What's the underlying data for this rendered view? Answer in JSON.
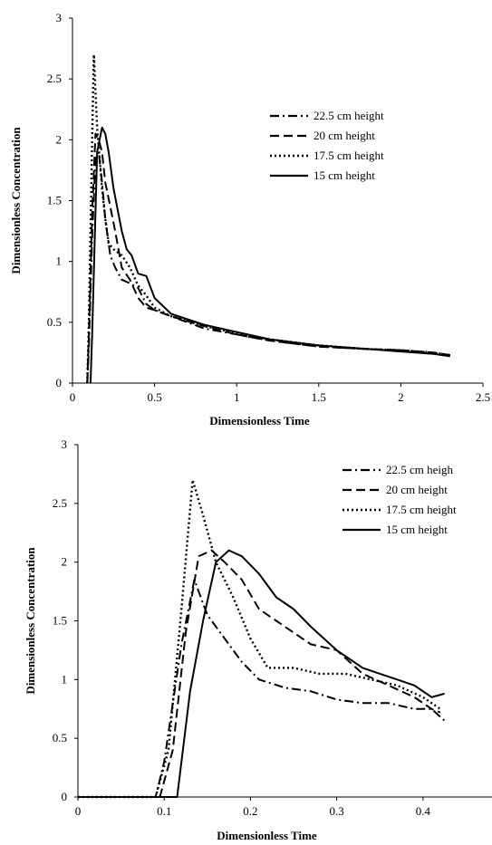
{
  "chart_data": [
    {
      "type": "line",
      "title": "",
      "xlabel": "Dimensionless Time",
      "ylabel": "Dimensionless Concentration",
      "xlim": [
        0,
        2.5
      ],
      "ylim": [
        0,
        3
      ],
      "xticks": [
        "0",
        "0.5",
        "1",
        "1.5",
        "2",
        "2.5"
      ],
      "yticks": [
        "0",
        "0.5",
        "1",
        "1.5",
        "2",
        "2.5",
        "3"
      ],
      "grid": false,
      "legend_position": "right",
      "series": [
        {
          "name": "22.5 cm height",
          "style": "dashdot",
          "x": [
            0.09,
            0.1,
            0.12,
            0.14,
            0.16,
            0.18,
            0.2,
            0.23,
            0.26,
            0.3,
            0.35,
            0.4,
            0.45,
            0.5,
            0.6,
            0.8,
            1.0,
            1.2,
            1.5,
            1.8,
            2.0,
            2.2,
            2.3
          ],
          "y": [
            0,
            0.3,
            1.2,
            1.85,
            1.9,
            1.65,
            1.35,
            1.05,
            0.95,
            0.85,
            0.82,
            0.78,
            0.65,
            0.6,
            0.55,
            0.45,
            0.4,
            0.35,
            0.3,
            0.28,
            0.27,
            0.25,
            0.23
          ]
        },
        {
          "name": "20 cm height",
          "style": "dash",
          "x": [
            0.09,
            0.1,
            0.12,
            0.14,
            0.16,
            0.18,
            0.2,
            0.23,
            0.26,
            0.3,
            0.35,
            0.4,
            0.45,
            0.5,
            0.6,
            0.8,
            1.0,
            1.2,
            1.5,
            1.8,
            2.0,
            2.2,
            2.3
          ],
          "y": [
            0,
            0.4,
            1.4,
            2.05,
            2.0,
            1.9,
            1.65,
            1.45,
            1.25,
            0.95,
            0.85,
            0.7,
            0.62,
            0.6,
            0.55,
            0.47,
            0.4,
            0.35,
            0.3,
            0.28,
            0.27,
            0.25,
            0.23
          ]
        },
        {
          "name": "17.5 cm height",
          "style": "dot",
          "x": [
            0.09,
            0.1,
            0.12,
            0.13,
            0.15,
            0.18,
            0.2,
            0.22,
            0.25,
            0.3,
            0.35,
            0.4,
            0.45,
            0.5,
            0.6,
            0.8,
            1.0,
            1.2,
            1.5,
            1.8,
            2.0,
            2.2,
            2.3
          ],
          "y": [
            0,
            0.5,
            2.0,
            2.7,
            2.1,
            1.6,
            1.35,
            1.15,
            1.1,
            1.05,
            0.95,
            0.8,
            0.72,
            0.62,
            0.55,
            0.47,
            0.41,
            0.36,
            0.31,
            0.28,
            0.27,
            0.25,
            0.23
          ]
        },
        {
          "name": "15 cm height",
          "style": "solid",
          "x": [
            0.11,
            0.12,
            0.15,
            0.18,
            0.2,
            0.22,
            0.25,
            0.3,
            0.33,
            0.36,
            0.4,
            0.45,
            0.5,
            0.6,
            0.8,
            1.0,
            1.2,
            1.5,
            1.8,
            2.0,
            2.2,
            2.3
          ],
          "y": [
            0,
            0.4,
            1.9,
            2.1,
            2.05,
            1.9,
            1.6,
            1.25,
            1.1,
            1.05,
            0.9,
            0.88,
            0.7,
            0.57,
            0.48,
            0.42,
            0.36,
            0.31,
            0.28,
            0.26,
            0.24,
            0.22
          ]
        }
      ]
    },
    {
      "type": "line",
      "title": "",
      "xlabel": "Dimensionless Time",
      "ylabel": "Dimensionless Concentration",
      "xlim": [
        0,
        0.48
      ],
      "ylim": [
        0,
        3
      ],
      "xticks": [
        "0",
        "0.1",
        "0.2",
        "0.3",
        "0.4"
      ],
      "yticks": [
        "0",
        "0.5",
        "1",
        "1.5",
        "2",
        "2.5",
        "3"
      ],
      "grid": false,
      "legend_position": "top-right",
      "series": [
        {
          "name": "22.5 cm heigh",
          "style": "dashdot",
          "x": [
            0,
            0.09,
            0.1,
            0.12,
            0.135,
            0.15,
            0.17,
            0.19,
            0.21,
            0.24,
            0.27,
            0.3,
            0.33,
            0.36,
            0.39,
            0.41,
            0.425
          ],
          "y": [
            0,
            0,
            0.3,
            1.3,
            1.85,
            1.55,
            1.35,
            1.15,
            1.0,
            0.93,
            0.9,
            0.83,
            0.8,
            0.8,
            0.75,
            0.75,
            0.65
          ]
        },
        {
          "name": "20 cm height",
          "style": "dash",
          "x": [
            0,
            0.095,
            0.11,
            0.125,
            0.14,
            0.155,
            0.17,
            0.19,
            0.21,
            0.24,
            0.27,
            0.3,
            0.33,
            0.36,
            0.39,
            0.41,
            0.42
          ],
          "y": [
            0,
            0,
            0.4,
            1.4,
            2.05,
            2.1,
            2.0,
            1.85,
            1.6,
            1.45,
            1.3,
            1.25,
            1.05,
            0.95,
            0.85,
            0.75,
            0.72
          ]
        },
        {
          "name": "17.5 cm height",
          "style": "dot",
          "x": [
            0,
            0.09,
            0.105,
            0.12,
            0.133,
            0.145,
            0.16,
            0.18,
            0.2,
            0.22,
            0.25,
            0.28,
            0.31,
            0.34,
            0.37,
            0.4,
            0.42
          ],
          "y": [
            0,
            0,
            0.4,
            1.6,
            2.7,
            2.4,
            2.0,
            1.7,
            1.35,
            1.1,
            1.1,
            1.05,
            1.05,
            1.0,
            0.95,
            0.85,
            0.75
          ]
        },
        {
          "name": "15 cm height",
          "style": "solid",
          "x": [
            0,
            0.115,
            0.13,
            0.145,
            0.16,
            0.175,
            0.19,
            0.21,
            0.23,
            0.25,
            0.27,
            0.3,
            0.33,
            0.35,
            0.37,
            0.39,
            0.41,
            0.425
          ],
          "y": [
            0,
            0,
            0.9,
            1.5,
            2.0,
            2.1,
            2.05,
            1.9,
            1.7,
            1.6,
            1.45,
            1.25,
            1.1,
            1.05,
            1.0,
            0.95,
            0.85,
            0.88
          ]
        }
      ]
    }
  ]
}
